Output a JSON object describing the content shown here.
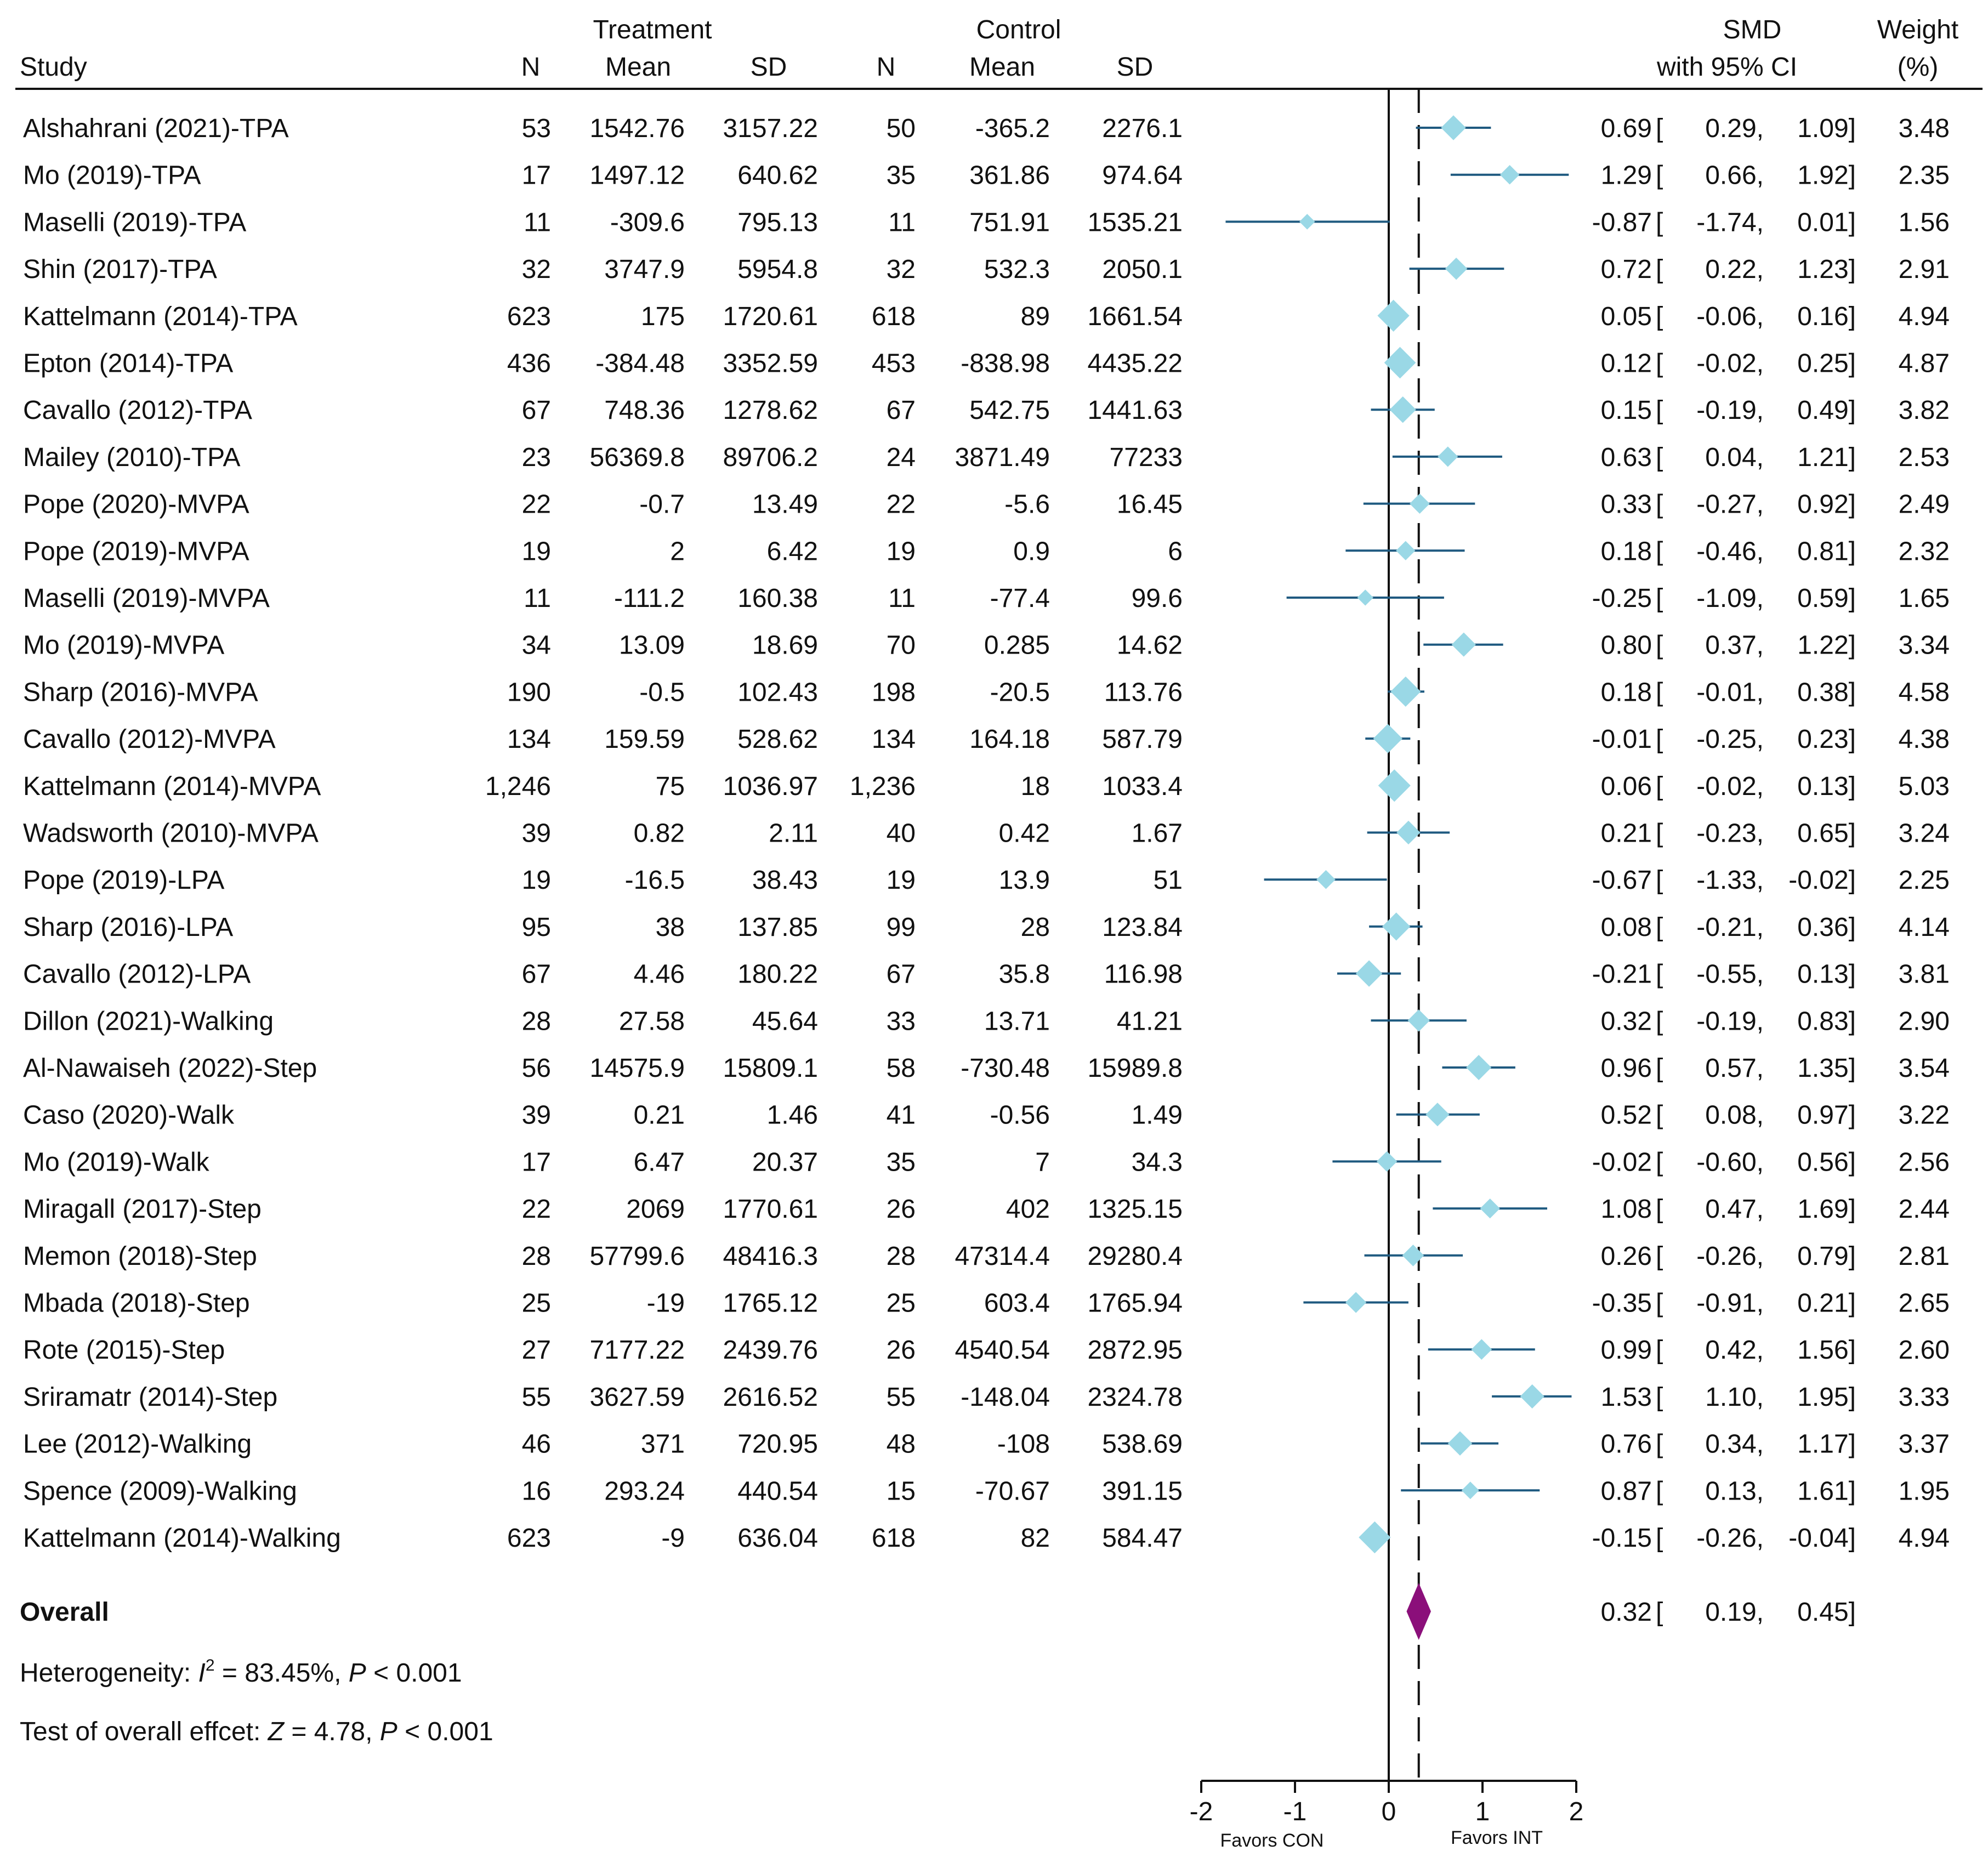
{
  "chart_data": {
    "type": "forest",
    "headers": {
      "study": "Study",
      "treatment_group": "Treatment",
      "control_group": "Control",
      "n": "N",
      "mean": "Mean",
      "sd": "SD",
      "smd_line1": "SMD",
      "smd_line2": "with 95% CI",
      "weight_line1": "Weight",
      "weight_line2": "(%)"
    },
    "studies": [
      {
        "study": "Alshahrani (2021)-TPA",
        "t_n": "53",
        "t_mean": "1542.76",
        "t_sd": "3157.22",
        "c_n": "50",
        "c_mean": "-365.2",
        "c_sd": "2276.1",
        "smd": 0.69,
        "lo": 0.29,
        "hi": 1.09,
        "smd_txt": "0.69",
        "lo_txt": "0.29,",
        "hi_txt": "1.09]",
        "weight": 3.48,
        "weight_txt": "3.48"
      },
      {
        "study": "Mo (2019)-TPA",
        "t_n": "17",
        "t_mean": "1497.12",
        "t_sd": "640.62",
        "c_n": "35",
        "c_mean": "361.86",
        "c_sd": "974.64",
        "smd": 1.29,
        "lo": 0.66,
        "hi": 1.92,
        "smd_txt": "1.29",
        "lo_txt": "0.66,",
        "hi_txt": "1.92]",
        "weight": 2.35,
        "weight_txt": "2.35"
      },
      {
        "study": "Maselli (2019)-TPA",
        "t_n": "11",
        "t_mean": "-309.6",
        "t_sd": "795.13",
        "c_n": "11",
        "c_mean": "751.91",
        "c_sd": "1535.21",
        "smd": -0.87,
        "lo": -1.74,
        "hi": 0.01,
        "smd_txt": "-0.87",
        "lo_txt": "-1.74,",
        "hi_txt": "0.01]",
        "weight": 1.56,
        "weight_txt": "1.56"
      },
      {
        "study": "Shin (2017)-TPA",
        "t_n": "32",
        "t_mean": "3747.9",
        "t_sd": "5954.8",
        "c_n": "32",
        "c_mean": "532.3",
        "c_sd": "2050.1",
        "smd": 0.72,
        "lo": 0.22,
        "hi": 1.23,
        "smd_txt": "0.72",
        "lo_txt": "0.22,",
        "hi_txt": "1.23]",
        "weight": 2.91,
        "weight_txt": "2.91"
      },
      {
        "study": "Kattelmann (2014)-TPA",
        "t_n": "623",
        "t_mean": "175",
        "t_sd": "1720.61",
        "c_n": "618",
        "c_mean": "89",
        "c_sd": "1661.54",
        "smd": 0.05,
        "lo": -0.06,
        "hi": 0.16,
        "smd_txt": "0.05",
        "lo_txt": "-0.06,",
        "hi_txt": "0.16]",
        "weight": 4.94,
        "weight_txt": "4.94"
      },
      {
        "study": "Epton (2014)-TPA",
        "t_n": "436",
        "t_mean": "-384.48",
        "t_sd": "3352.59",
        "c_n": "453",
        "c_mean": "-838.98",
        "c_sd": "4435.22",
        "smd": 0.12,
        "lo": -0.02,
        "hi": 0.25,
        "smd_txt": "0.12",
        "lo_txt": "-0.02,",
        "hi_txt": "0.25]",
        "weight": 4.87,
        "weight_txt": "4.87"
      },
      {
        "study": "Cavallo (2012)-TPA",
        "t_n": "67",
        "t_mean": "748.36",
        "t_sd": "1278.62",
        "c_n": "67",
        "c_mean": "542.75",
        "c_sd": "1441.63",
        "smd": 0.15,
        "lo": -0.19,
        "hi": 0.49,
        "smd_txt": "0.15",
        "lo_txt": "-0.19,",
        "hi_txt": "0.49]",
        "weight": 3.82,
        "weight_txt": "3.82"
      },
      {
        "study": "Mailey (2010)-TPA",
        "t_n": "23",
        "t_mean": "56369.8",
        "t_sd": "89706.2",
        "c_n": "24",
        "c_mean": "3871.49",
        "c_sd": "77233",
        "smd": 0.63,
        "lo": 0.04,
        "hi": 1.21,
        "smd_txt": "0.63",
        "lo_txt": "0.04,",
        "hi_txt": "1.21]",
        "weight": 2.53,
        "weight_txt": "2.53"
      },
      {
        "study": "Pope (2020)-MVPA",
        "t_n": "22",
        "t_mean": "-0.7",
        "t_sd": "13.49",
        "c_n": "22",
        "c_mean": "-5.6",
        "c_sd": "16.45",
        "smd": 0.33,
        "lo": -0.27,
        "hi": 0.92,
        "smd_txt": "0.33",
        "lo_txt": "-0.27,",
        "hi_txt": "0.92]",
        "weight": 2.49,
        "weight_txt": "2.49"
      },
      {
        "study": "Pope (2019)-MVPA",
        "t_n": "19",
        "t_mean": "2",
        "t_sd": "6.42",
        "c_n": "19",
        "c_mean": "0.9",
        "c_sd": "6",
        "smd": 0.18,
        "lo": -0.46,
        "hi": 0.81,
        "smd_txt": "0.18",
        "lo_txt": "-0.46,",
        "hi_txt": "0.81]",
        "weight": 2.32,
        "weight_txt": "2.32"
      },
      {
        "study": "Maselli (2019)-MVPA",
        "t_n": "11",
        "t_mean": "-111.2",
        "t_sd": "160.38",
        "c_n": "11",
        "c_mean": "-77.4",
        "c_sd": "99.6",
        "smd": -0.25,
        "lo": -1.09,
        "hi": 0.59,
        "smd_txt": "-0.25",
        "lo_txt": "-1.09,",
        "hi_txt": "0.59]",
        "weight": 1.65,
        "weight_txt": "1.65"
      },
      {
        "study": "Mo (2019)-MVPA",
        "t_n": "34",
        "t_mean": "13.09",
        "t_sd": "18.69",
        "c_n": "70",
        "c_mean": "0.285",
        "c_sd": "14.62",
        "smd": 0.8,
        "lo": 0.37,
        "hi": 1.22,
        "smd_txt": "0.80",
        "lo_txt": "0.37,",
        "hi_txt": "1.22]",
        "weight": 3.34,
        "weight_txt": "3.34"
      },
      {
        "study": "Sharp (2016)-MVPA",
        "t_n": "190",
        "t_mean": "-0.5",
        "t_sd": "102.43",
        "c_n": "198",
        "c_mean": "-20.5",
        "c_sd": "113.76",
        "smd": 0.18,
        "lo": -0.01,
        "hi": 0.38,
        "smd_txt": "0.18",
        "lo_txt": "-0.01,",
        "hi_txt": "0.38]",
        "weight": 4.58,
        "weight_txt": "4.58"
      },
      {
        "study": "Cavallo (2012)-MVPA",
        "t_n": "134",
        "t_mean": "159.59",
        "t_sd": "528.62",
        "c_n": "134",
        "c_mean": "164.18",
        "c_sd": "587.79",
        "smd": -0.01,
        "lo": -0.25,
        "hi": 0.23,
        "smd_txt": "-0.01",
        "lo_txt": "-0.25,",
        "hi_txt": "0.23]",
        "weight": 4.38,
        "weight_txt": "4.38"
      },
      {
        "study": "Kattelmann (2014)-MVPA",
        "t_n": "1,246",
        "t_mean": "75",
        "t_sd": "1036.97",
        "c_n": "1,236",
        "c_mean": "18",
        "c_sd": "1033.4",
        "smd": 0.06,
        "lo": -0.02,
        "hi": 0.13,
        "smd_txt": "0.06",
        "lo_txt": "-0.02,",
        "hi_txt": "0.13]",
        "weight": 5.03,
        "weight_txt": "5.03"
      },
      {
        "study": "Wadsworth (2010)-MVPA",
        "t_n": "39",
        "t_mean": "0.82",
        "t_sd": "2.11",
        "c_n": "40",
        "c_mean": "0.42",
        "c_sd": "1.67",
        "smd": 0.21,
        "lo": -0.23,
        "hi": 0.65,
        "smd_txt": "0.21",
        "lo_txt": "-0.23,",
        "hi_txt": "0.65]",
        "weight": 3.24,
        "weight_txt": "3.24"
      },
      {
        "study": "Pope (2019)-LPA",
        "t_n": "19",
        "t_mean": "-16.5",
        "t_sd": "38.43",
        "c_n": "19",
        "c_mean": "13.9",
        "c_sd": "51",
        "smd": -0.67,
        "lo": -1.33,
        "hi": -0.02,
        "smd_txt": "-0.67",
        "lo_txt": "-1.33,",
        "hi_txt": "-0.02]",
        "weight": 2.25,
        "weight_txt": "2.25"
      },
      {
        "study": "Sharp (2016)-LPA",
        "t_n": "95",
        "t_mean": "38",
        "t_sd": "137.85",
        "c_n": "99",
        "c_mean": "28",
        "c_sd": "123.84",
        "smd": 0.08,
        "lo": -0.21,
        "hi": 0.36,
        "smd_txt": "0.08",
        "lo_txt": "-0.21,",
        "hi_txt": "0.36]",
        "weight": 4.14,
        "weight_txt": "4.14"
      },
      {
        "study": "Cavallo (2012)-LPA",
        "t_n": "67",
        "t_mean": "4.46",
        "t_sd": "180.22",
        "c_n": "67",
        "c_mean": "35.8",
        "c_sd": "116.98",
        "smd": -0.21,
        "lo": -0.55,
        "hi": 0.13,
        "smd_txt": "-0.21",
        "lo_txt": "-0.55,",
        "hi_txt": "0.13]",
        "weight": 3.81,
        "weight_txt": "3.81"
      },
      {
        "study": "Dillon (2021)-Walking",
        "t_n": "28",
        "t_mean": "27.58",
        "t_sd": "45.64",
        "c_n": "33",
        "c_mean": "13.71",
        "c_sd": "41.21",
        "smd": 0.32,
        "lo": -0.19,
        "hi": 0.83,
        "smd_txt": "0.32",
        "lo_txt": "-0.19,",
        "hi_txt": "0.83]",
        "weight": 2.9,
        "weight_txt": "2.90"
      },
      {
        "study": "Al-Nawaiseh (2022)-Step",
        "t_n": "56",
        "t_mean": "14575.9",
        "t_sd": "15809.1",
        "c_n": "58",
        "c_mean": "-730.48",
        "c_sd": "15989.8",
        "smd": 0.96,
        "lo": 0.57,
        "hi": 1.35,
        "smd_txt": "0.96",
        "lo_txt": "0.57,",
        "hi_txt": "1.35]",
        "weight": 3.54,
        "weight_txt": "3.54"
      },
      {
        "study": "Caso (2020)-Walk",
        "t_n": "39",
        "t_mean": "0.21",
        "t_sd": "1.46",
        "c_n": "41",
        "c_mean": "-0.56",
        "c_sd": "1.49",
        "smd": 0.52,
        "lo": 0.08,
        "hi": 0.97,
        "smd_txt": "0.52",
        "lo_txt": "0.08,",
        "hi_txt": "0.97]",
        "weight": 3.22,
        "weight_txt": "3.22"
      },
      {
        "study": "Mo (2019)-Walk",
        "t_n": "17",
        "t_mean": "6.47",
        "t_sd": "20.37",
        "c_n": "35",
        "c_mean": "7",
        "c_sd": "34.3",
        "smd": -0.02,
        "lo": -0.6,
        "hi": 0.56,
        "smd_txt": "-0.02",
        "lo_txt": "-0.60,",
        "hi_txt": "0.56]",
        "weight": 2.56,
        "weight_txt": "2.56"
      },
      {
        "study": "Miragall (2017)-Step",
        "t_n": "22",
        "t_mean": "2069",
        "t_sd": "1770.61",
        "c_n": "26",
        "c_mean": "402",
        "c_sd": "1325.15",
        "smd": 1.08,
        "lo": 0.47,
        "hi": 1.69,
        "smd_txt": "1.08",
        "lo_txt": "0.47,",
        "hi_txt": "1.69]",
        "weight": 2.44,
        "weight_txt": "2.44"
      },
      {
        "study": "Memon (2018)-Step",
        "t_n": "28",
        "t_mean": "57799.6",
        "t_sd": "48416.3",
        "c_n": "28",
        "c_mean": "47314.4",
        "c_sd": "29280.4",
        "smd": 0.26,
        "lo": -0.26,
        "hi": 0.79,
        "smd_txt": "0.26",
        "lo_txt": "-0.26,",
        "hi_txt": "0.79]",
        "weight": 2.81,
        "weight_txt": "2.81"
      },
      {
        "study": "Mbada (2018)-Step",
        "t_n": "25",
        "t_mean": "-19",
        "t_sd": "1765.12",
        "c_n": "25",
        "c_mean": "603.4",
        "c_sd": "1765.94",
        "smd": -0.35,
        "lo": -0.91,
        "hi": 0.21,
        "smd_txt": "-0.35",
        "lo_txt": "-0.91,",
        "hi_txt": "0.21]",
        "weight": 2.65,
        "weight_txt": "2.65"
      },
      {
        "study": "Rote (2015)-Step",
        "t_n": "27",
        "t_mean": "7177.22",
        "t_sd": "2439.76",
        "c_n": "26",
        "c_mean": "4540.54",
        "c_sd": "2872.95",
        "smd": 0.99,
        "lo": 0.42,
        "hi": 1.56,
        "smd_txt": "0.99",
        "lo_txt": "0.42,",
        "hi_txt": "1.56]",
        "weight": 2.6,
        "weight_txt": "2.60"
      },
      {
        "study": "Sriramatr (2014)-Step",
        "t_n": "55",
        "t_mean": "3627.59",
        "t_sd": "2616.52",
        "c_n": "55",
        "c_mean": "-148.04",
        "c_sd": "2324.78",
        "smd": 1.53,
        "lo": 1.1,
        "hi": 1.95,
        "smd_txt": "1.53",
        "lo_txt": "1.10,",
        "hi_txt": "1.95]",
        "weight": 3.33,
        "weight_txt": "3.33"
      },
      {
        "study": "Lee (2012)-Walking",
        "t_n": "46",
        "t_mean": "371",
        "t_sd": "720.95",
        "c_n": "48",
        "c_mean": "-108",
        "c_sd": "538.69",
        "smd": 0.76,
        "lo": 0.34,
        "hi": 1.17,
        "smd_txt": "0.76",
        "lo_txt": "0.34,",
        "hi_txt": "1.17]",
        "weight": 3.37,
        "weight_txt": "3.37"
      },
      {
        "study": "Spence (2009)-Walking",
        "t_n": "16",
        "t_mean": "293.24",
        "t_sd": "440.54",
        "c_n": "15",
        "c_mean": "-70.67",
        "c_sd": "391.15",
        "smd": 0.87,
        "lo": 0.13,
        "hi": 1.61,
        "smd_txt": "0.87",
        "lo_txt": "0.13,",
        "hi_txt": "1.61]",
        "weight": 1.95,
        "weight_txt": "1.95"
      },
      {
        "study": "Kattelmann (2014)-Walking",
        "t_n": "623",
        "t_mean": "-9",
        "t_sd": "636.04",
        "c_n": "618",
        "c_mean": "82",
        "c_sd": "584.47",
        "smd": -0.15,
        "lo": -0.26,
        "hi": -0.04,
        "smd_txt": "-0.15",
        "lo_txt": "-0.26,",
        "hi_txt": "-0.04]",
        "weight": 4.94,
        "weight_txt": "4.94"
      }
    ],
    "overall": {
      "label": "Overall",
      "smd": 0.32,
      "lo": 0.19,
      "hi": 0.45,
      "smd_txt": "0.32",
      "lo_txt": "0.19,",
      "hi_txt": "0.45]"
    },
    "heterogeneity": {
      "label": "Heterogeneity: ",
      "stat_symbol": "I",
      "stat_sup": "2",
      "stat_value": " = 83.45%, ",
      "p_symbol": "P",
      "p_value": " < 0.001"
    },
    "overall_test": {
      "label": "Test of overall effcet: ",
      "z_symbol": "Z",
      "z_value": " = 4.78, ",
      "p_symbol": "P",
      "p_value": " < 0.001"
    },
    "bracket_open": "[",
    "x_axis": {
      "range": [
        -2,
        2
      ],
      "ticks": [
        -2,
        -1,
        0,
        1,
        2
      ],
      "tick_labels": [
        "-2",
        "-1",
        "0",
        "1",
        "2"
      ],
      "left_label": "Favors CON",
      "right_label": "Favors INT"
    },
    "null_line": 0,
    "colors": {
      "marker": "#9ad8e6",
      "ci_line": "#1f5a80",
      "overall_diamond": "#8b0f7a",
      "text": "#111111"
    }
  }
}
